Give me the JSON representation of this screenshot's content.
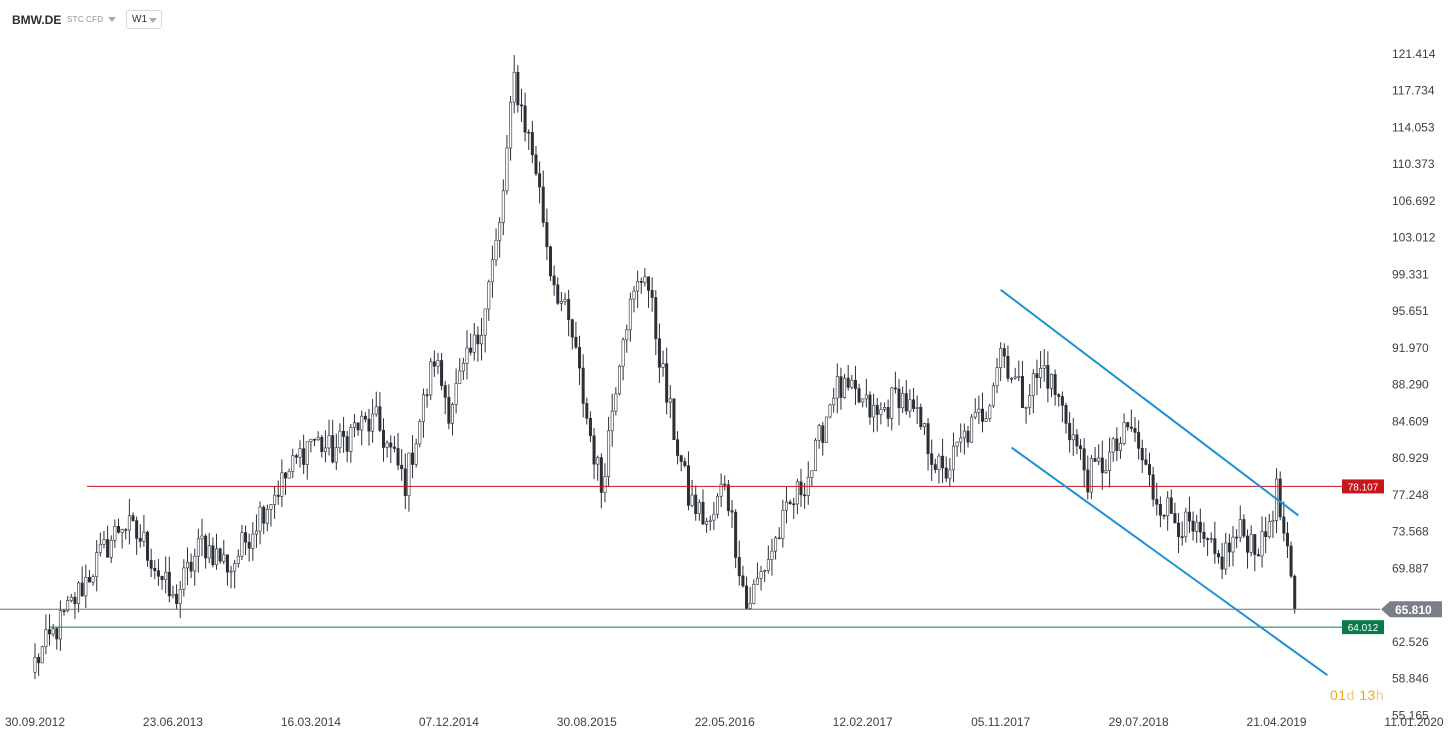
{
  "header": {
    "symbol": "BMW.DE",
    "instrument_type": "STC",
    "instrument_class": "CFD",
    "timeframe": "W1"
  },
  "countdown": {
    "days": "01",
    "days_unit": "d",
    "hours": "13",
    "hours_unit": "h"
  },
  "colors": {
    "candle": "#2b2f36",
    "resistance": "#c8161d",
    "support": "#0a7a4a",
    "current": "#6b7078",
    "channel": "#1f8fd6"
  },
  "chart_data": {
    "type": "candlestick",
    "title": "",
    "x_ticks": [
      "30.09.2012",
      "23.06.2013",
      "16.03.2014",
      "07.12.2014",
      "30.08.2015",
      "22.05.2016",
      "12.02.2017",
      "05.11.2017",
      "29.07.2018",
      "21.04.2019",
      "11.01.2020"
    ],
    "y_ticks": [
      121.414,
      117.734,
      114.053,
      110.373,
      106.692,
      103.012,
      99.331,
      95.651,
      91.97,
      88.29,
      84.609,
      80.929,
      77.248,
      73.568,
      69.887,
      62.526,
      58.846,
      55.165
    ],
    "ylim": [
      55.165,
      125.1
    ],
    "levels": [
      {
        "name": "resistance",
        "value": 78.107,
        "label": "78.107"
      },
      {
        "name": "support",
        "value": 64.012,
        "label": "64.012"
      },
      {
        "name": "current",
        "value": 65.81,
        "label": "65.810"
      }
    ],
    "channel": {
      "upper": [
        {
          "date": "2017-11-05",
          "value": 97.8
        },
        {
          "date": "2019-06-02",
          "value": 75.2
        }
      ],
      "lower": [
        {
          "date": "2017-11-26",
          "value": 82.0
        },
        {
          "date": "2019-07-28",
          "value": 59.2
        }
      ]
    },
    "candles_weekly": [
      {
        "date": "2012-09-30",
        "close": 60.5
      },
      {
        "date": "2012-11-25",
        "close": 65.0
      },
      {
        "date": "2013-01-20",
        "close": 70.0
      },
      {
        "date": "2013-03-17",
        "close": 74.5
      },
      {
        "date": "2013-04-28",
        "close": 72.5
      },
      {
        "date": "2013-06-23",
        "close": 66.5
      },
      {
        "date": "2013-08-18",
        "close": 72.5
      },
      {
        "date": "2013-10-13",
        "close": 70.0
      },
      {
        "date": "2013-12-08",
        "close": 75.5
      },
      {
        "date": "2014-02-02",
        "close": 79.5
      },
      {
        "date": "2014-03-16",
        "close": 83.0
      },
      {
        "date": "2014-04-27",
        "close": 81.5
      },
      {
        "date": "2014-06-08",
        "close": 84.0
      },
      {
        "date": "2014-07-20",
        "close": 84.5
      },
      {
        "date": "2014-09-14",
        "close": 78.5
      },
      {
        "date": "2014-11-09",
        "close": 91.0
      },
      {
        "date": "2014-12-07",
        "close": 86.0
      },
      {
        "date": "2015-02-01",
        "close": 93.0
      },
      {
        "date": "2015-03-15",
        "close": 104.0
      },
      {
        "date": "2015-04-12",
        "close": 119.0
      },
      {
        "date": "2015-05-24",
        "close": 110.0
      },
      {
        "date": "2015-06-21",
        "close": 100.0
      },
      {
        "date": "2015-08-02",
        "close": 93.0
      },
      {
        "date": "2015-08-30",
        "close": 85.0
      },
      {
        "date": "2015-09-27",
        "close": 78.0
      },
      {
        "date": "2015-11-08",
        "close": 94.0
      },
      {
        "date": "2015-12-20",
        "close": 100.0
      },
      {
        "date": "2016-01-31",
        "close": 87.0
      },
      {
        "date": "2016-03-13",
        "close": 77.0
      },
      {
        "date": "2016-04-24",
        "close": 74.0
      },
      {
        "date": "2016-05-22",
        "close": 79.0
      },
      {
        "date": "2016-07-03",
        "close": 66.0
      },
      {
        "date": "2016-08-14",
        "close": 71.0
      },
      {
        "date": "2016-09-25",
        "close": 76.0
      },
      {
        "date": "2016-11-06",
        "close": 80.0
      },
      {
        "date": "2016-12-18",
        "close": 88.0
      },
      {
        "date": "2017-01-29",
        "close": 87.0
      },
      {
        "date": "2017-03-12",
        "close": 85.0
      },
      {
        "date": "2017-04-23",
        "close": 87.5
      },
      {
        "date": "2017-06-04",
        "close": 84.0
      },
      {
        "date": "2017-07-16",
        "close": 79.0
      },
      {
        "date": "2017-08-27",
        "close": 83.0
      },
      {
        "date": "2017-10-08",
        "close": 86.0
      },
      {
        "date": "2017-11-05",
        "close": 92.0
      },
      {
        "date": "2017-12-17",
        "close": 87.0
      },
      {
        "date": "2018-01-28",
        "close": 90.0
      },
      {
        "date": "2018-03-11",
        "close": 85.0
      },
      {
        "date": "2018-04-22",
        "close": 79.0
      },
      {
        "date": "2018-06-03",
        "close": 81.0
      },
      {
        "date": "2018-07-15",
        "close": 84.0
      },
      {
        "date": "2018-08-26",
        "close": 77.5
      },
      {
        "date": "2018-10-07",
        "close": 75.0
      },
      {
        "date": "2018-11-18",
        "close": 73.0
      },
      {
        "date": "2018-12-30",
        "close": 70.5
      },
      {
        "date": "2019-02-10",
        "close": 73.5
      },
      {
        "date": "2019-03-24",
        "close": 72.0
      },
      {
        "date": "2019-04-21",
        "close": 77.5
      },
      {
        "date": "2019-05-05",
        "close": 73.0
      },
      {
        "date": "2019-05-26",
        "close": 65.8
      }
    ]
  }
}
